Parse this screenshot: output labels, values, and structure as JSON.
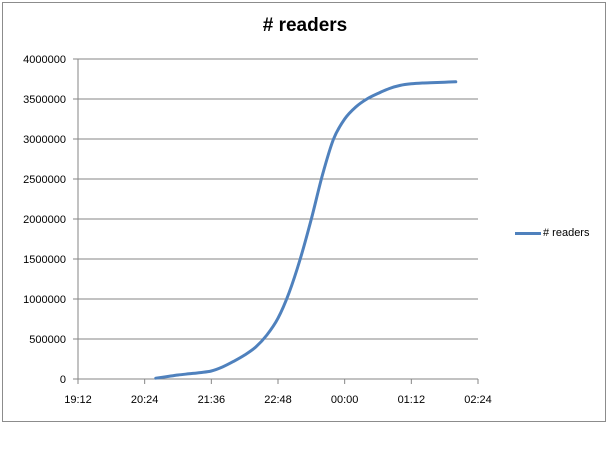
{
  "chart_data": {
    "type": "line",
    "title": "# readers",
    "xlabel": "",
    "ylabel": "",
    "x_ticks": [
      "19:12",
      "20:24",
      "21:36",
      "22:48",
      "00:00",
      "01:12",
      "02:24"
    ],
    "y_ticks": [
      "0",
      "500000",
      "1000000",
      "1500000",
      "2000000",
      "2500000",
      "3000000",
      "3500000",
      "4000000"
    ],
    "ylim": [
      0,
      4000000
    ],
    "grid": "horizontal",
    "legend_position": "right",
    "series": [
      {
        "name": "# readers",
        "color": "#4f81bd",
        "x": [
          "20:36",
          "20:48",
          "21:00",
          "21:12",
          "21:24",
          "21:36",
          "21:48",
          "22:00",
          "22:12",
          "22:24",
          "22:36",
          "22:48",
          "23:00",
          "23:12",
          "23:24",
          "23:36",
          "23:48",
          "00:00",
          "00:12",
          "00:24",
          "00:36",
          "00:48",
          "01:00",
          "01:12",
          "01:24",
          "01:36",
          "01:48",
          "02:00"
        ],
        "values": [
          10000,
          30000,
          50000,
          65000,
          80000,
          100000,
          150000,
          220000,
          300000,
          400000,
          550000,
          760000,
          1080000,
          1500000,
          2000000,
          2550000,
          3000000,
          3250000,
          3400000,
          3500000,
          3570000,
          3630000,
          3670000,
          3690000,
          3700000,
          3705000,
          3710000,
          3715000
        ]
      }
    ]
  }
}
